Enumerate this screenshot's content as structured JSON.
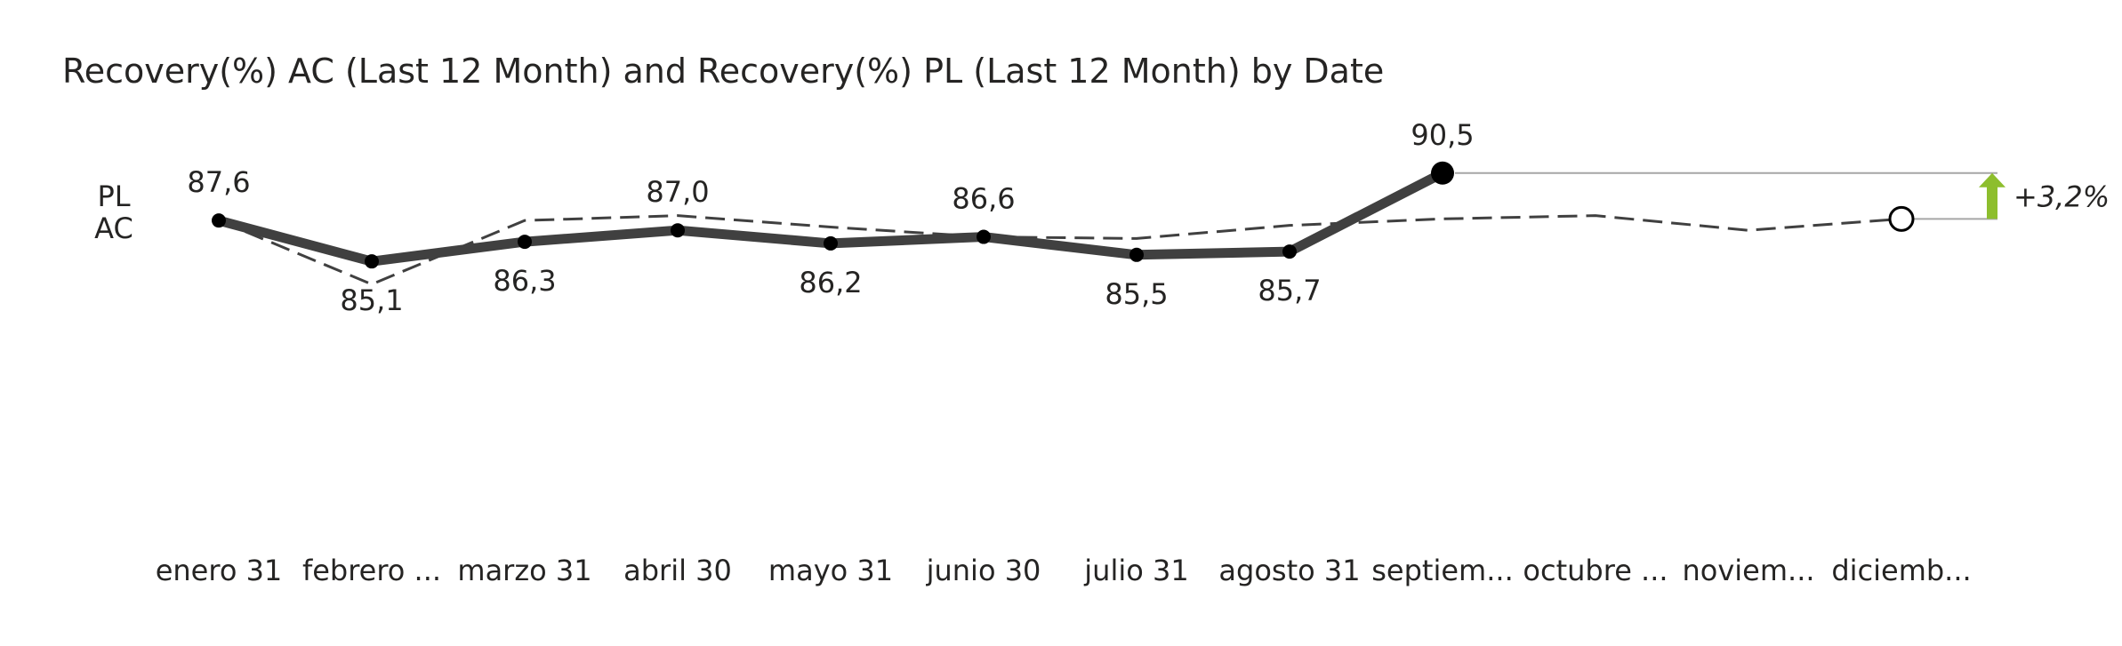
{
  "chart_data": {
    "type": "line",
    "title": "Recovery(%) AC (Last 12 Month) and Recovery(%) PL (Last 12 Month) by Date",
    "categories": [
      "enero 31",
      "febrero ...",
      "marzo 31",
      "abril 30",
      "mayo 31",
      "junio 30",
      "julio 31",
      "agosto 31",
      "septiem...",
      "octubre ...",
      "noviem...",
      "diciemb..."
    ],
    "series": [
      {
        "name": "AC",
        "values": [
          87.6,
          85.1,
          86.3,
          87.0,
          86.2,
          86.6,
          85.5,
          85.7,
          90.5,
          null,
          null,
          null
        ]
      },
      {
        "name": "PL",
        "values": [
          87.6,
          83.7,
          87.6,
          87.9,
          87.2,
          86.6,
          86.5,
          87.3,
          87.7,
          87.9,
          87.0,
          87.7
        ]
      }
    ],
    "data_labels": [
      "87,6",
      "85,1",
      "86,3",
      "87,0",
      "86,2",
      "86,6",
      "85,5",
      "85,7",
      "90,5"
    ],
    "row_labels": {
      "pl": "PL",
      "ac": "AC"
    },
    "variance": {
      "label": "+3,2%",
      "direction": "up",
      "from_value": 87.7,
      "to_value": 90.5
    },
    "ylim": [
      80,
      92
    ],
    "grid": false,
    "legend": "none",
    "colors": {
      "ac": "#404040",
      "pl": "#404040",
      "positive": "#8DBE2D",
      "reference": "#A6A6A6"
    }
  }
}
